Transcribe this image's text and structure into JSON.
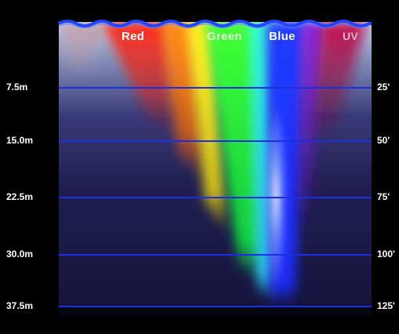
{
  "spectrum_labels": {
    "ir": "IR",
    "red": "Red",
    "green": "Green",
    "blue": "Blue",
    "uv": "UV"
  },
  "depth_markers": [
    {
      "meters": "7.5m",
      "feet": "25'"
    },
    {
      "meters": "15.0m",
      "feet": "50'"
    },
    {
      "meters": "22.5m",
      "feet": "75'"
    },
    {
      "meters": "30.0m",
      "feet": "100'"
    },
    {
      "meters": "37.5m",
      "feet": "125'"
    }
  ],
  "colors": {
    "background": "#000000",
    "water_deep": "#1a1840",
    "water_surface": "#b8c6df",
    "surface_wave": "#1f45ff",
    "depth_line": "#1c2fe0",
    "ir_label": "#b9a0a8",
    "red_label": "#ffffff",
    "green_label": "#e3ffd6",
    "blue_label": "#ffffff",
    "uv_label": "#d9b6c8"
  }
}
